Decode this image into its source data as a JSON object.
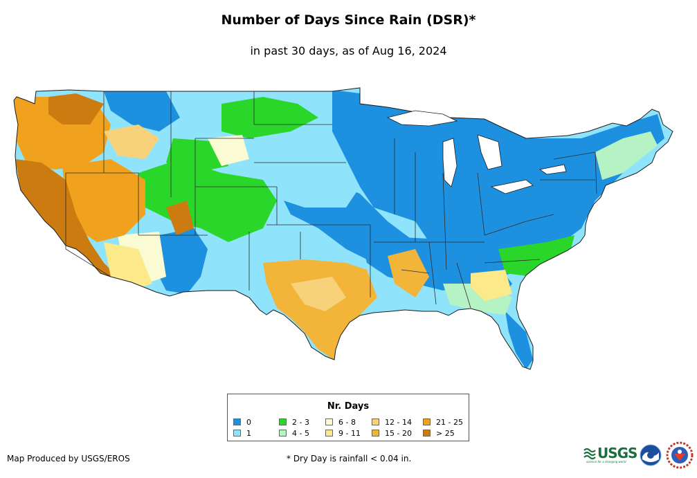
{
  "title": "Number of Days Since Rain (DSR)*",
  "subtitle": "in past 30 days, as of Aug 16, 2024",
  "legend": {
    "title": "Nr. Days",
    "items": [
      {
        "label": "0",
        "color": "#1e90e0"
      },
      {
        "label": "1",
        "color": "#8fe3fa"
      },
      {
        "label": "2 - 3",
        "color": "#2bd62b"
      },
      {
        "label": "4 - 5",
        "color": "#b5f2c4"
      },
      {
        "label": "6 - 8",
        "color": "#fbfbd3"
      },
      {
        "label": "9 - 11",
        "color": "#fbe98a"
      },
      {
        "label": "12 - 14",
        "color": "#f8d27a"
      },
      {
        "label": "15 - 20",
        "color": "#f2b53a"
      },
      {
        "label": "21 - 25",
        "color": "#f0a21e"
      },
      {
        "label": "> 25",
        "color": "#cb7b10"
      }
    ]
  },
  "footer": {
    "credit": "Map Produced by USGS/EROS",
    "note": "* Dry Day is rainfall < 0.04 in."
  },
  "logos": {
    "usgs": {
      "text": "USGS",
      "tagline": "science for a changing world"
    }
  }
}
